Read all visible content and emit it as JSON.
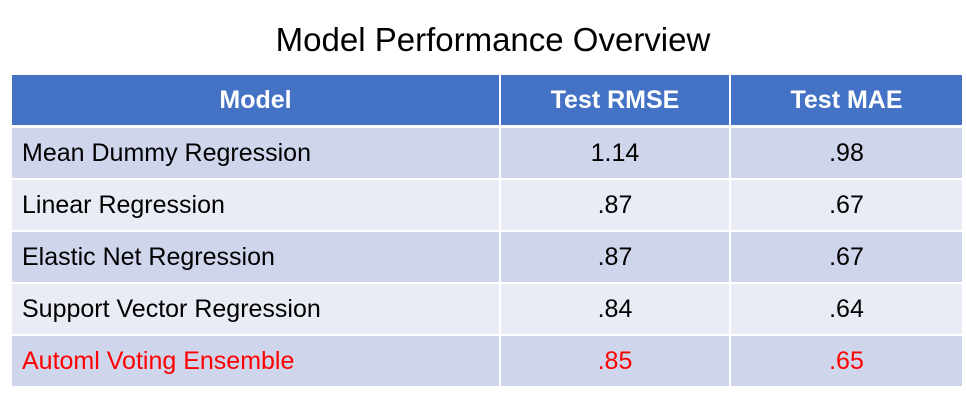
{
  "title": "Model Performance Overview",
  "table": {
    "headers": {
      "model": "Model",
      "rmse": "Test RMSE",
      "mae": "Test MAE"
    },
    "rows": [
      {
        "model": "Mean Dummy Regression",
        "rmse": "1.14",
        "mae": ".98"
      },
      {
        "model": "Linear Regression",
        "rmse": ".87",
        "mae": ".67"
      },
      {
        "model": "Elastic Net Regression",
        "rmse": ".87",
        "mae": ".67"
      },
      {
        "model": "Support Vector Regression",
        "rmse": ".84",
        "mae": ".64"
      },
      {
        "model": "Automl Voting Ensemble",
        "rmse": ".85",
        "mae": ".65"
      }
    ]
  },
  "colors": {
    "header_bg": "#4472c4",
    "row_band_dark": "#cfd5ea",
    "row_band_light": "#e9ebf5",
    "highlight_text": "#ff0000"
  }
}
